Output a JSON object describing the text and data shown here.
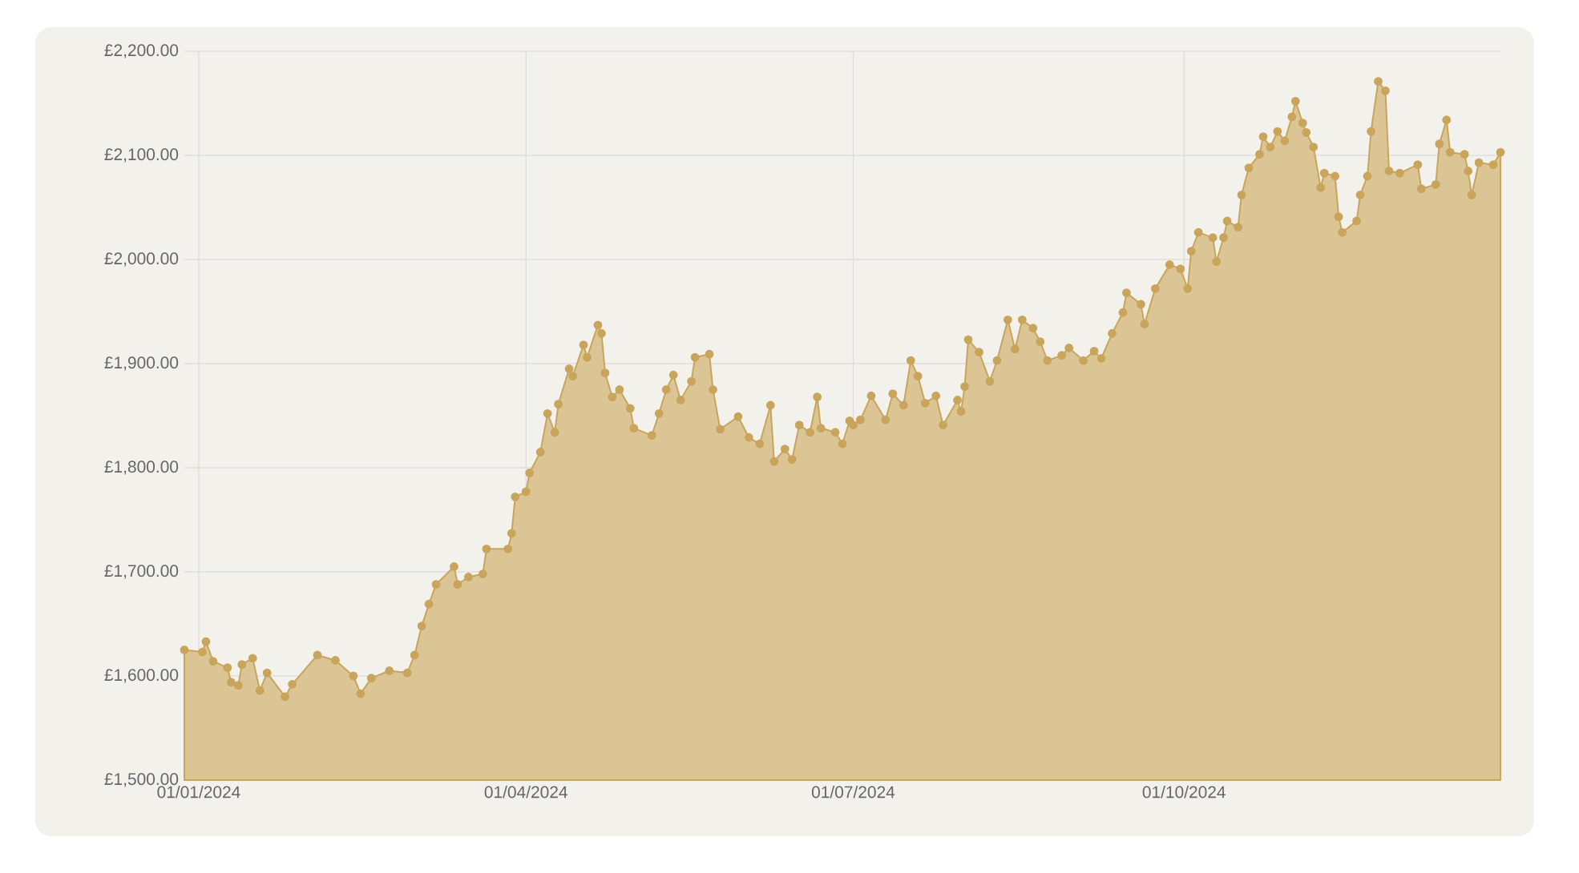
{
  "chart_data": {
    "type": "area",
    "marker": "circle",
    "line_style": "solid",
    "grid": true,
    "xlim": [
      "2023-12-28",
      "2024-12-28"
    ],
    "xticks": [
      {
        "value": "2024-01-01",
        "label": "01/01/2024"
      },
      {
        "value": "2024-04-01",
        "label": "01/04/2024"
      },
      {
        "value": "2024-07-01",
        "label": "01/07/2024"
      },
      {
        "value": "2024-10-01",
        "label": "01/10/2024"
      }
    ],
    "ylim": [
      1500,
      2200
    ],
    "yticks": [
      {
        "value": 1500,
        "label": "£1,500.00"
      },
      {
        "value": 1600,
        "label": "£1,600.00"
      },
      {
        "value": 1700,
        "label": "£1,700.00"
      },
      {
        "value": 1800,
        "label": "£1,800.00"
      },
      {
        "value": 1900,
        "label": "£1,900.00"
      },
      {
        "value": 2000,
        "label": "£2,000.00"
      },
      {
        "value": 2100,
        "label": "£2,100.00"
      },
      {
        "value": 2200,
        "label": "£2,200.00"
      }
    ],
    "series": [
      {
        "color": "#c9a55c",
        "x": [
          "2023-12-28",
          "2024-01-02",
          "2024-01-03",
          "2024-01-05",
          "2024-01-09",
          "2024-01-10",
          "2024-01-12",
          "2024-01-13",
          "2024-01-16",
          "2024-01-18",
          "2024-01-20",
          "2024-01-25",
          "2024-01-27",
          "2024-02-03",
          "2024-02-08",
          "2024-02-13",
          "2024-02-15",
          "2024-02-18",
          "2024-02-23",
          "2024-02-28",
          "2024-03-01",
          "2024-03-03",
          "2024-03-05",
          "2024-03-07",
          "2024-03-12",
          "2024-03-13",
          "2024-03-16",
          "2024-03-20",
          "2024-03-21",
          "2024-03-27",
          "2024-03-28",
          "2024-03-29",
          "2024-04-01",
          "2024-04-02",
          "2024-04-05",
          "2024-04-07",
          "2024-04-09",
          "2024-04-10",
          "2024-04-13",
          "2024-04-14",
          "2024-04-17",
          "2024-04-18",
          "2024-04-21",
          "2024-04-22",
          "2024-04-23",
          "2024-04-25",
          "2024-04-27",
          "2024-04-30",
          "2024-05-01",
          "2024-05-06",
          "2024-05-08",
          "2024-05-10",
          "2024-05-12",
          "2024-05-14",
          "2024-05-17",
          "2024-05-18",
          "2024-05-22",
          "2024-05-23",
          "2024-05-25",
          "2024-05-30",
          "2024-06-02",
          "2024-06-05",
          "2024-06-08",
          "2024-06-09",
          "2024-06-12",
          "2024-06-14",
          "2024-06-16",
          "2024-06-19",
          "2024-06-21",
          "2024-06-22",
          "2024-06-26",
          "2024-06-28",
          "2024-06-30",
          "2024-07-01",
          "2024-07-03",
          "2024-07-06",
          "2024-07-10",
          "2024-07-12",
          "2024-07-15",
          "2024-07-17",
          "2024-07-19",
          "2024-07-21",
          "2024-07-24",
          "2024-07-26",
          "2024-07-30",
          "2024-07-31",
          "2024-08-01",
          "2024-08-02",
          "2024-08-05",
          "2024-08-08",
          "2024-08-10",
          "2024-08-13",
          "2024-08-15",
          "2024-08-17",
          "2024-08-20",
          "2024-08-22",
          "2024-08-24",
          "2024-08-28",
          "2024-08-30",
          "2024-09-03",
          "2024-09-06",
          "2024-09-08",
          "2024-09-11",
          "2024-09-14",
          "2024-09-15",
          "2024-09-19",
          "2024-09-20",
          "2024-09-23",
          "2024-09-27",
          "2024-09-30",
          "2024-10-02",
          "2024-10-03",
          "2024-10-05",
          "2024-10-09",
          "2024-10-10",
          "2024-10-12",
          "2024-10-13",
          "2024-10-16",
          "2024-10-17",
          "2024-10-19",
          "2024-10-22",
          "2024-10-23",
          "2024-10-25",
          "2024-10-27",
          "2024-10-29",
          "2024-10-31",
          "2024-11-01",
          "2024-11-03",
          "2024-11-04",
          "2024-11-06",
          "2024-11-08",
          "2024-11-09",
          "2024-11-12",
          "2024-11-13",
          "2024-11-14",
          "2024-11-18",
          "2024-11-19",
          "2024-11-21",
          "2024-11-22",
          "2024-11-24",
          "2024-11-26",
          "2024-11-27",
          "2024-11-30",
          "2024-12-05",
          "2024-12-06",
          "2024-12-10",
          "2024-12-11",
          "2024-12-13",
          "2024-12-14",
          "2024-12-18",
          "2024-12-19",
          "2024-12-20",
          "2024-12-22",
          "2024-12-26",
          "2024-12-28"
        ],
        "values": [
          1625,
          1623,
          1633,
          1614,
          1608,
          1594,
          1591,
          1611,
          1617,
          1586,
          1603,
          1580,
          1592,
          1620,
          1615,
          1600,
          1583,
          1598,
          1605,
          1603,
          1620,
          1648,
          1669,
          1688,
          1705,
          1688,
          1695,
          1698,
          1722,
          1722,
          1737,
          1772,
          1777,
          1795,
          1815,
          1852,
          1834,
          1861,
          1895,
          1888,
          1918,
          1906,
          1937,
          1929,
          1891,
          1868,
          1875,
          1857,
          1838,
          1831,
          1852,
          1875,
          1889,
          1865,
          1883,
          1906,
          1909,
          1875,
          1837,
          1849,
          1829,
          1823,
          1860,
          1806,
          1818,
          1808,
          1841,
          1834,
          1868,
          1838,
          1834,
          1823,
          1845,
          1841,
          1846,
          1869,
          1846,
          1871,
          1860,
          1903,
          1888,
          1862,
          1869,
          1841,
          1865,
          1854,
          1878,
          1923,
          1911,
          1883,
          1903,
          1942,
          1914,
          1942,
          1934,
          1921,
          1903,
          1908,
          1915,
          1903,
          1912,
          1905,
          1929,
          1949,
          1968,
          1957,
          1938,
          1972,
          1995,
          1991,
          1972,
          2008,
          2026,
          2021,
          1998,
          2021,
          2037,
          2031,
          2062,
          2088,
          2101,
          2118,
          2108,
          2123,
          2114,
          2137,
          2152,
          2131,
          2122,
          2108,
          2069,
          2083,
          2080,
          2041,
          2026,
          2037,
          2062,
          2080,
          2123,
          2171,
          2162,
          2085,
          2083,
          2091,
          2068,
          2072,
          2111,
          2134,
          2103,
          2101,
          2085,
          2062,
          2093,
          2091,
          2103
        ]
      }
    ]
  }
}
